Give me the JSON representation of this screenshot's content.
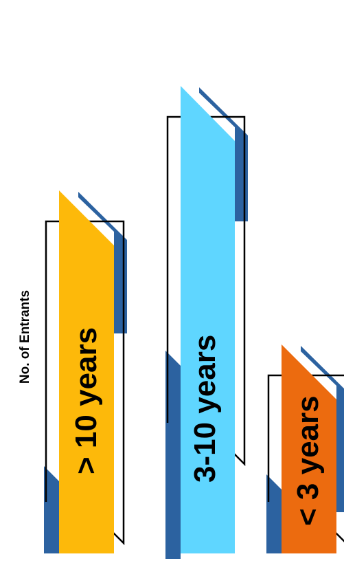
{
  "chart_data": {
    "type": "bar",
    "ylabel": "No. of Entrants",
    "categories": [
      "> 10 years",
      "3-10 years",
      "< 3 years"
    ],
    "values": [
      66,
      85,
      38
    ],
    "ylim": [
      0,
      100
    ],
    "grid": false,
    "legend": "none",
    "colors": {
      "bars": [
        "#FDB90A",
        "#5FD6FF",
        "#EC6B0F"
      ],
      "shadow": "#2C62A0",
      "outline": "#000000"
    }
  }
}
